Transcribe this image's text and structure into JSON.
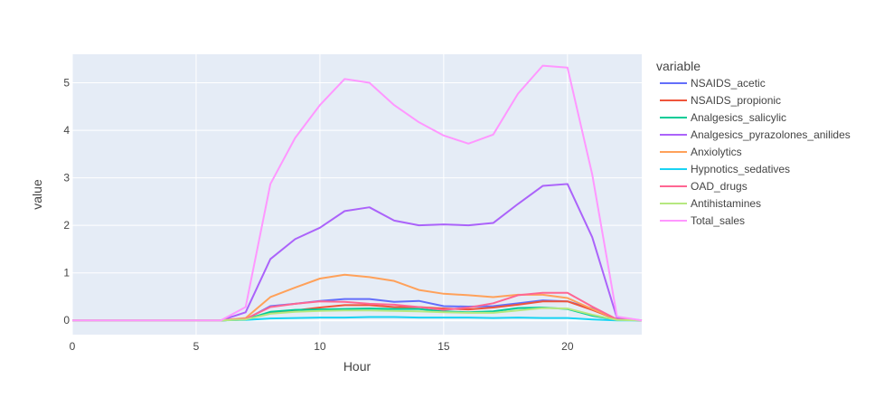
{
  "chart_data": {
    "type": "line",
    "xlabel": "Hour",
    "ylabel": "value",
    "legend_title": "variable",
    "legend_position": "right",
    "grid": true,
    "xlim": [
      0,
      23
    ],
    "ylim": [
      -0.3,
      5.6
    ],
    "x_ticks": [
      0,
      5,
      10,
      15,
      20
    ],
    "y_ticks": [
      0,
      1,
      2,
      3,
      4,
      5
    ],
    "x": [
      0,
      1,
      2,
      3,
      4,
      5,
      6,
      7,
      8,
      9,
      10,
      11,
      12,
      13,
      14,
      15,
      16,
      17,
      18,
      19,
      20,
      21,
      22,
      23
    ],
    "series": [
      {
        "name": "NSAIDS_acetic",
        "color": "#636efa",
        "values": [
          0,
          0,
          0,
          0,
          0,
          0,
          0,
          0.02,
          0.3,
          0.35,
          0.41,
          0.45,
          0.45,
          0.39,
          0.41,
          0.3,
          0.29,
          0.3,
          0.36,
          0.42,
          0.4,
          0.25,
          0.02,
          0
        ]
      },
      {
        "name": "NSAIDS_propionic",
        "color": "#ef553b",
        "values": [
          0,
          0,
          0,
          0,
          0,
          0,
          0,
          0.02,
          0.15,
          0.21,
          0.27,
          0.32,
          0.32,
          0.28,
          0.28,
          0.25,
          0.23,
          0.27,
          0.33,
          0.4,
          0.4,
          0.22,
          0.02,
          0
        ]
      },
      {
        "name": "Analgesics_salicylic",
        "color": "#00cc96",
        "values": [
          0,
          0,
          0,
          0,
          0,
          0,
          0,
          0.02,
          0.18,
          0.22,
          0.23,
          0.24,
          0.25,
          0.24,
          0.24,
          0.19,
          0.17,
          0.19,
          0.26,
          0.27,
          0.24,
          0.1,
          0.01,
          0
        ]
      },
      {
        "name": "Analgesics_pyrazolones_anilides",
        "color": "#ab63fa",
        "values": [
          0,
          0,
          0,
          0,
          0,
          0,
          0,
          0.17,
          1.29,
          1.71,
          1.95,
          2.3,
          2.38,
          2.1,
          2.0,
          2.02,
          2.0,
          2.05,
          2.45,
          2.83,
          2.87,
          1.75,
          0.05,
          0
        ]
      },
      {
        "name": "Anxiolytics",
        "color": "#ffa15a",
        "values": [
          0,
          0,
          0,
          0,
          0,
          0,
          0,
          0.05,
          0.49,
          0.69,
          0.88,
          0.96,
          0.91,
          0.83,
          0.64,
          0.56,
          0.53,
          0.49,
          0.54,
          0.54,
          0.47,
          0.24,
          0.02,
          0
        ]
      },
      {
        "name": "Hypnotics_sedatives",
        "color": "#19d3f3",
        "values": [
          0,
          0,
          0,
          0,
          0,
          0,
          0,
          0.01,
          0.04,
          0.05,
          0.06,
          0.06,
          0.07,
          0.07,
          0.06,
          0.06,
          0.06,
          0.05,
          0.06,
          0.05,
          0.05,
          0.02,
          0.0,
          0
        ]
      },
      {
        "name": "OAD_drugs",
        "color": "#ff6692",
        "values": [
          0,
          0,
          0,
          0,
          0,
          0,
          0,
          0.03,
          0.28,
          0.35,
          0.4,
          0.39,
          0.35,
          0.33,
          0.28,
          0.22,
          0.27,
          0.36,
          0.53,
          0.58,
          0.58,
          0.29,
          0.02,
          0
        ]
      },
      {
        "name": "Antihistamines",
        "color": "#b6e880",
        "values": [
          0,
          0,
          0,
          0,
          0,
          0,
          0,
          0.02,
          0.14,
          0.18,
          0.2,
          0.21,
          0.21,
          0.2,
          0.19,
          0.17,
          0.16,
          0.16,
          0.21,
          0.26,
          0.25,
          0.12,
          0.01,
          0
        ]
      },
      {
        "name": "Total_sales",
        "color": "#ff97ff",
        "values": [
          0,
          0,
          0,
          0,
          0,
          0,
          0,
          0.28,
          2.87,
          3.84,
          4.53,
          5.08,
          5.0,
          4.53,
          4.17,
          3.89,
          3.72,
          3.91,
          4.77,
          5.36,
          5.32,
          3.07,
          0.08,
          0
        ]
      }
    ]
  }
}
